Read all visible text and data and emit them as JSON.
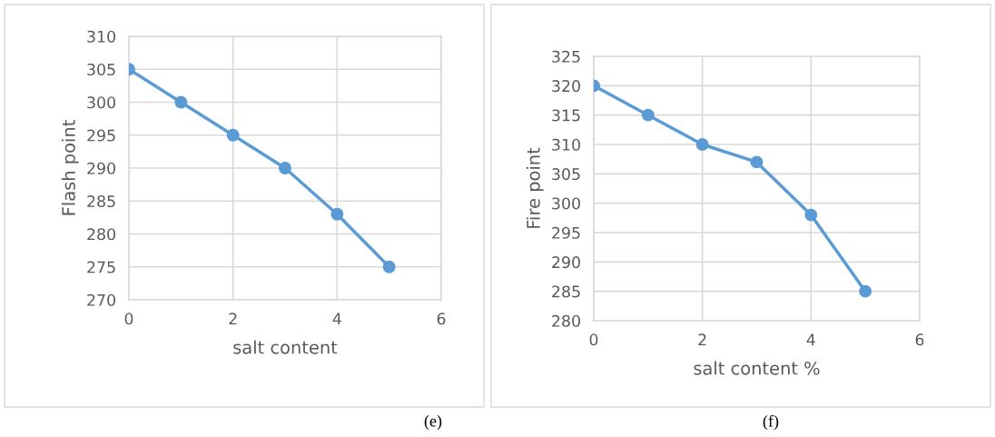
{
  "chart_data": [
    {
      "type": "line",
      "xlabel": "salt content",
      "ylabel": "Flash point",
      "x": [
        0,
        1,
        2,
        3,
        4,
        5
      ],
      "series": [
        {
          "color": "#5b9bd5",
          "values": [
            305,
            300,
            295,
            290,
            283,
            275
          ]
        }
      ],
      "xlim": [
        0,
        6
      ],
      "xticks": [
        0,
        2,
        4,
        6
      ],
      "ylim": [
        270,
        310
      ],
      "yticks": [
        270,
        275,
        280,
        285,
        290,
        295,
        300,
        305,
        310
      ],
      "grid": true,
      "marker": "circle",
      "line_style": "solid",
      "annotations": [
        "(e)"
      ]
    },
    {
      "type": "line",
      "xlabel": "salt content %",
      "ylabel": "Fire point",
      "x": [
        0,
        1,
        2,
        3,
        4,
        5
      ],
      "series": [
        {
          "color": "#5b9bd5",
          "values": [
            320,
            315,
            310,
            307,
            298,
            285
          ]
        }
      ],
      "xlim": [
        0,
        6
      ],
      "xticks": [
        0,
        2,
        4,
        6
      ],
      "ylim": [
        280,
        325
      ],
      "yticks": [
        280,
        285,
        290,
        295,
        300,
        305,
        310,
        315,
        320,
        325
      ],
      "grid": true,
      "marker": "circle",
      "line_style": "solid",
      "annotations": [
        "(f)"
      ]
    }
  ]
}
